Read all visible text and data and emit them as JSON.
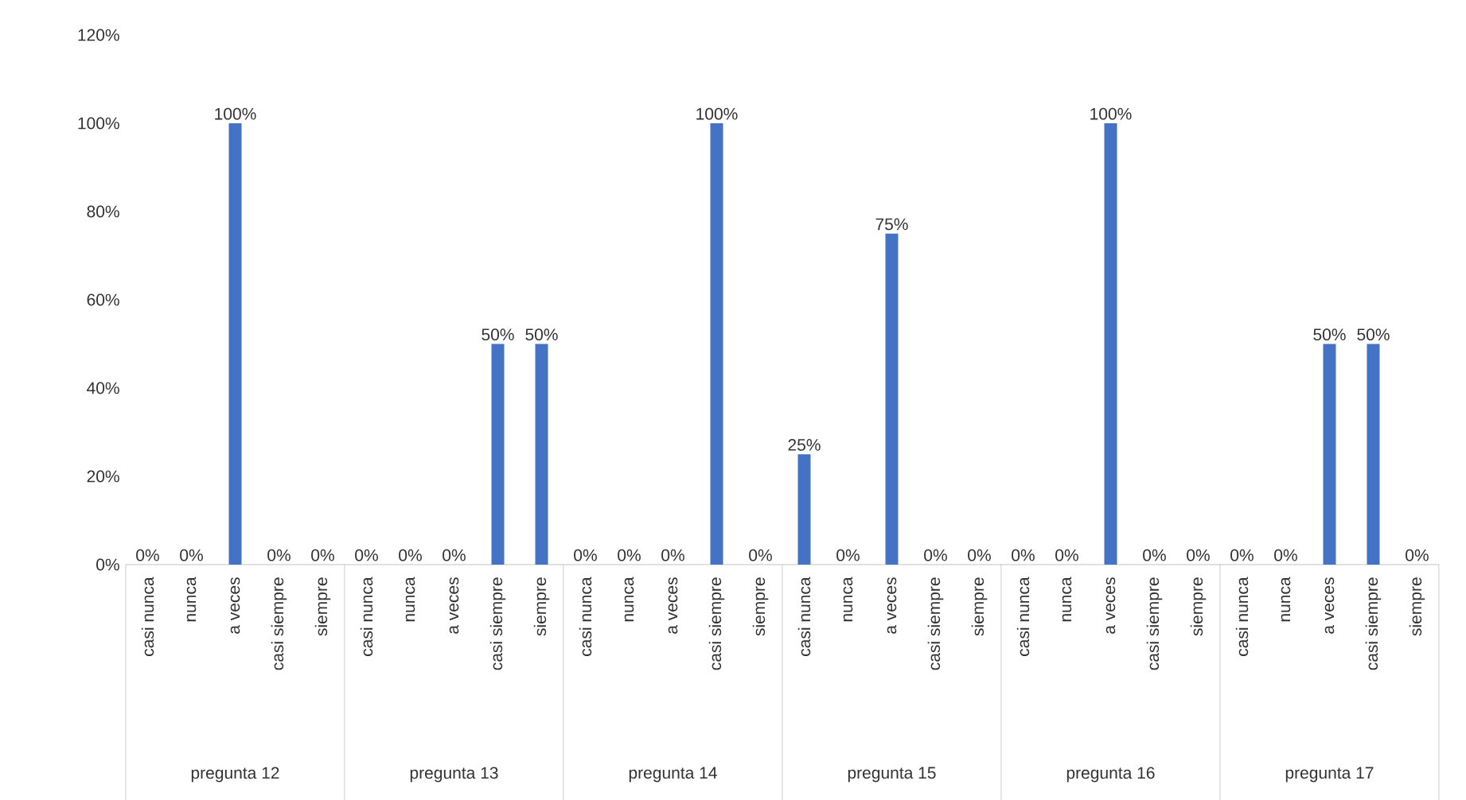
{
  "chart_data": {
    "type": "bar",
    "categories": [
      "casi nunca",
      "nunca",
      "a veces",
      "casi siempre",
      "siempre",
      "casi nunca",
      "nunca",
      "a veces",
      "casi siempre",
      "siempre",
      "casi nunca",
      "nunca",
      "a veces",
      "casi siempre",
      "siempre",
      "casi nunca",
      "nunca",
      "a veces",
      "casi siempre",
      "siempre",
      "casi nunca",
      "nunca",
      "a veces",
      "casi siempre",
      "siempre",
      "casi nunca",
      "nunca",
      "a veces",
      "casi siempre",
      "siempre"
    ],
    "values": [
      0,
      0,
      100,
      0,
      0,
      0,
      0,
      0,
      50,
      50,
      0,
      0,
      0,
      100,
      0,
      25,
      0,
      75,
      0,
      0,
      0,
      0,
      100,
      0,
      0,
      0,
      0,
      50,
      50,
      0
    ],
    "value_labels": [
      "0%",
      "0%",
      "100%",
      "0%",
      "0%",
      "0%",
      "0%",
      "0%",
      "50%",
      "50%",
      "0%",
      "0%",
      "0%",
      "100%",
      "0%",
      "25%",
      "0%",
      "75%",
      "0%",
      "0%",
      "0%",
      "0%",
      "100%",
      "0%",
      "0%",
      "0%",
      "0%",
      "50%",
      "50%",
      "0%"
    ],
    "color": "#4472c4",
    "ylim": [
      0,
      120
    ],
    "yticks": [
      {
        "value": 0,
        "label": "0%"
      },
      {
        "value": 20,
        "label": "20%"
      },
      {
        "value": 40,
        "label": "40%"
      },
      {
        "value": 60,
        "label": "60%"
      },
      {
        "value": 80,
        "label": "80%"
      },
      {
        "value": 100,
        "label": "100%"
      },
      {
        "value": 120,
        "label": "120%"
      }
    ],
    "annotations": [
      "pregunta 12",
      "pregunta 13",
      "pregunta 14",
      "pregunta 15",
      "pregunta 16",
      "pregunta 17"
    ]
  }
}
